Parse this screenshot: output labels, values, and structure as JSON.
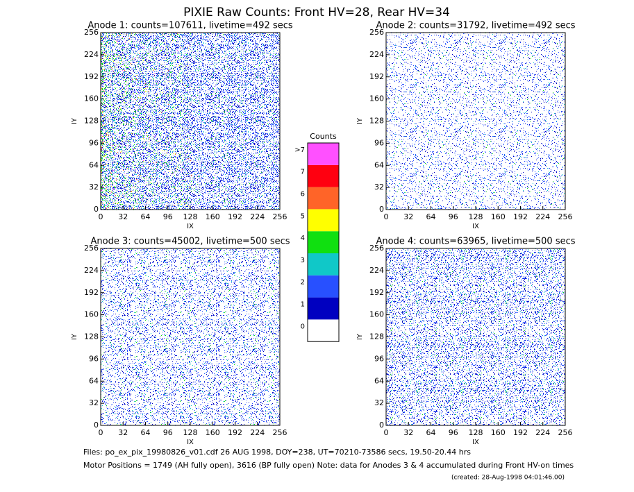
{
  "title": "PIXIE Raw Counts:  Front HV=28, Rear HV=34",
  "chart_data": [
    {
      "type": "heatmap",
      "title": "Anode 1: counts=107611, livetime=492 secs",
      "xlabel": "IX",
      "ylabel": "IY",
      "xlim": [
        0,
        256
      ],
      "ylim": [
        0,
        256
      ],
      "xticks": [
        0,
        32,
        64,
        96,
        128,
        160,
        192,
        224,
        256
      ],
      "yticks": [
        0,
        32,
        64,
        96,
        128,
        160,
        192,
        224,
        256
      ]
    },
    {
      "type": "heatmap",
      "title": "Anode 2: counts=31792, livetime=492 secs",
      "xlabel": "IX",
      "ylabel": "IY",
      "xlim": [
        0,
        256
      ],
      "ylim": [
        0,
        256
      ],
      "xticks": [
        0,
        32,
        64,
        96,
        128,
        160,
        192,
        224,
        256
      ],
      "yticks": [
        0,
        32,
        64,
        96,
        128,
        160,
        192,
        224,
        256
      ]
    },
    {
      "type": "heatmap",
      "title": "Anode 3: counts=45002, livetime=500 secs",
      "xlabel": "IX",
      "ylabel": "IY",
      "xlim": [
        0,
        256
      ],
      "ylim": [
        0,
        256
      ],
      "xticks": [
        0,
        32,
        64,
        96,
        128,
        160,
        192,
        224,
        256
      ],
      "yticks": [
        0,
        32,
        64,
        96,
        128,
        160,
        192,
        224,
        256
      ]
    },
    {
      "type": "heatmap",
      "title": "Anode 4: counts=63965, livetime=500 secs",
      "xlabel": "IX",
      "ylabel": "IY",
      "xlim": [
        0,
        256
      ],
      "ylim": [
        0,
        256
      ],
      "xticks": [
        0,
        32,
        64,
        96,
        128,
        160,
        192,
        224,
        256
      ],
      "yticks": [
        0,
        32,
        64,
        96,
        128,
        160,
        192,
        224,
        256
      ]
    }
  ],
  "colorbar": {
    "title": "Counts",
    "labels": [
      "0",
      "1",
      "2",
      "3",
      "4",
      "5",
      "6",
      "7",
      ">7"
    ],
    "colors": [
      "#ffffff",
      "#0000c0",
      "#2850ff",
      "#10c8c8",
      "#10e010",
      "#ffff00",
      "#ff6428",
      "#ff0010",
      "#ff50ff"
    ]
  },
  "footer": [
    "Files: po_ex_pix_19980826_v01.cdf    26 AUG 1998, DOY=238, UT=70210-73586 secs, 19.50-20.44 hrs",
    "Motor Positions = 1749 (AH fully open), 3616 (BP fully open)    Note: data for Anodes 3 & 4 accumulated during Front HV-on times",
    "(created: 28-Aug-1998 04:01:46.00)"
  ]
}
